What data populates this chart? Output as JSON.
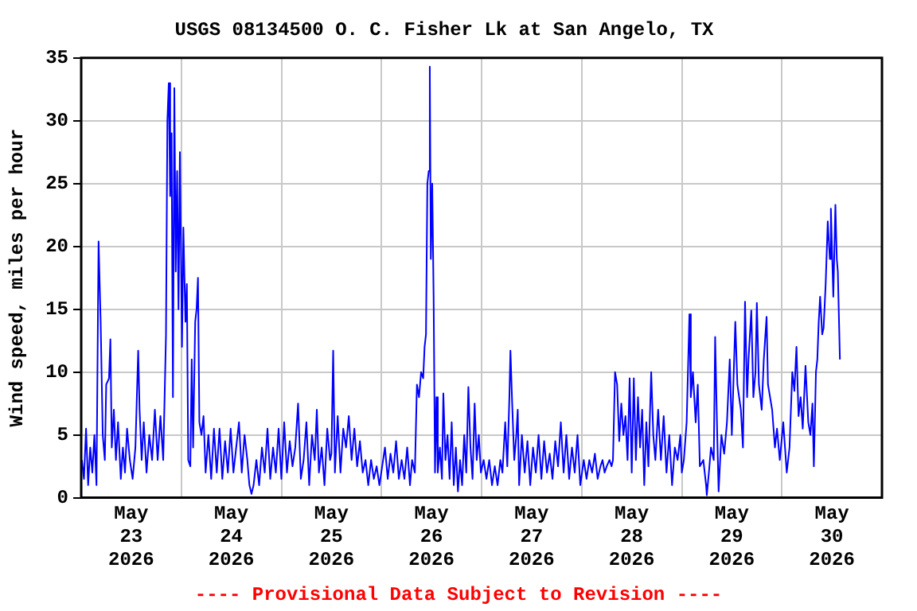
{
  "chart_data": {
    "type": "line",
    "title": "USGS 08134500 O. C. Fisher Lk at San Angelo, TX",
    "ylabel": "Wind speed, miles per hour",
    "annotations": [
      "---- Provisional Data Subject to Revision ----"
    ],
    "xlim": [
      "2026-05-23T00:00",
      "2026-05-31T00:00"
    ],
    "xticks": [
      {
        "value": "2026-05-23T00:00",
        "label": null
      },
      {
        "value": "2026-05-23T12:00",
        "label": "May 23 2026"
      },
      {
        "value": "2026-05-24T00:00",
        "label": null
      },
      {
        "value": "2026-05-24T12:00",
        "label": "May 24 2026"
      },
      {
        "value": "2026-05-25T00:00",
        "label": null
      },
      {
        "value": "2026-05-25T12:00",
        "label": "May 25 2026"
      },
      {
        "value": "2026-05-26T00:00",
        "label": null
      },
      {
        "value": "2026-05-26T12:00",
        "label": "May 26 2026"
      },
      {
        "value": "2026-05-27T00:00",
        "label": null
      },
      {
        "value": "2026-05-27T12:00",
        "label": "May 27 2026"
      },
      {
        "value": "2026-05-28T00:00",
        "label": null
      },
      {
        "value": "2026-05-28T12:00",
        "label": "May 28 2026"
      },
      {
        "value": "2026-05-29T00:00",
        "label": null
      },
      {
        "value": "2026-05-29T12:00",
        "label": "May 29 2026"
      },
      {
        "value": "2026-05-30T00:00",
        "label": null
      },
      {
        "value": "2026-05-30T12:00",
        "label": "May 30 2026"
      },
      {
        "value": "2026-05-31T00:00",
        "label": null
      }
    ],
    "ylim": [
      0,
      35
    ],
    "yticks": [
      0,
      5,
      10,
      15,
      20,
      25,
      30,
      35
    ],
    "grid": true,
    "legend": false,
    "marker": "none",
    "line_style": "solid",
    "series": [
      {
        "color": "#0000ff",
        "x": [
          "2026-05-23T00:10",
          "2026-05-23T00:40",
          "2026-05-23T01:10",
          "2026-05-23T01:40",
          "2026-05-23T02:10",
          "2026-05-23T02:40",
          "2026-05-23T03:10",
          "2026-05-23T03:40",
          "2026-05-23T04:10",
          "2026-05-23T04:40",
          "2026-05-23T05:10",
          "2026-05-23T05:40",
          "2026-05-23T06:00",
          "2026-05-23T06:40",
          "2026-05-23T07:00",
          "2026-05-23T07:20",
          "2026-05-23T07:50",
          "2026-05-23T08:20",
          "2026-05-23T08:50",
          "2026-05-23T09:30",
          "2026-05-23T10:00",
          "2026-05-23T10:30",
          "2026-05-23T11:00",
          "2026-05-23T11:40",
          "2026-05-23T12:20",
          "2026-05-23T13:00",
          "2026-05-23T13:40",
          "2026-05-23T14:00",
          "2026-05-23T14:30",
          "2026-05-23T15:00",
          "2026-05-23T15:40",
          "2026-05-23T16:20",
          "2026-05-23T17:00",
          "2026-05-23T17:40",
          "2026-05-23T18:20",
          "2026-05-23T19:00",
          "2026-05-23T19:40",
          "2026-05-23T20:20",
          "2026-05-23T20:40",
          "2026-05-23T21:00",
          "2026-05-23T21:20",
          "2026-05-23T21:40",
          "2026-05-23T22:00",
          "2026-05-23T22:20",
          "2026-05-23T22:40",
          "2026-05-23T23:00",
          "2026-05-23T23:20",
          "2026-05-23T23:40",
          "2026-05-24T00:10",
          "2026-05-24T00:30",
          "2026-05-24T01:00",
          "2026-05-24T01:20",
          "2026-05-24T01:40",
          "2026-05-24T02:10",
          "2026-05-24T02:30",
          "2026-05-24T02:50",
          "2026-05-24T03:20",
          "2026-05-24T03:40",
          "2026-05-24T04:00",
          "2026-05-24T04:20",
          "2026-05-24T04:50",
          "2026-05-24T05:20",
          "2026-05-24T05:50",
          "2026-05-24T06:30",
          "2026-05-24T07:10",
          "2026-05-24T07:50",
          "2026-05-24T08:30",
          "2026-05-24T09:10",
          "2026-05-24T09:50",
          "2026-05-24T10:30",
          "2026-05-24T11:10",
          "2026-05-24T11:50",
          "2026-05-24T12:30",
          "2026-05-24T13:10",
          "2026-05-24T13:50",
          "2026-05-24T14:30",
          "2026-05-24T15:10",
          "2026-05-24T15:50",
          "2026-05-24T16:20",
          "2026-05-24T16:50",
          "2026-05-24T17:20",
          "2026-05-24T18:00",
          "2026-05-24T18:40",
          "2026-05-24T19:20",
          "2026-05-24T20:00",
          "2026-05-24T20:40",
          "2026-05-24T21:20",
          "2026-05-24T22:00",
          "2026-05-24T22:40",
          "2026-05-24T23:20",
          "2026-05-25T00:00",
          "2026-05-25T00:40",
          "2026-05-25T01:20",
          "2026-05-25T02:00",
          "2026-05-25T02:40",
          "2026-05-25T03:20",
          "2026-05-25T04:00",
          "2026-05-25T04:40",
          "2026-05-25T05:20",
          "2026-05-25T06:00",
          "2026-05-25T06:40",
          "2026-05-25T07:20",
          "2026-05-25T08:00",
          "2026-05-25T08:30",
          "2026-05-25T09:00",
          "2026-05-25T09:40",
          "2026-05-25T10:20",
          "2026-05-25T11:00",
          "2026-05-25T11:40",
          "2026-05-25T12:00",
          "2026-05-25T12:25",
          "2026-05-25T12:50",
          "2026-05-25T13:30",
          "2026-05-25T14:10",
          "2026-05-25T14:50",
          "2026-05-25T15:30",
          "2026-05-25T16:10",
          "2026-05-25T16:50",
          "2026-05-25T17:30",
          "2026-05-25T18:10",
          "2026-05-25T18:50",
          "2026-05-25T19:30",
          "2026-05-25T20:10",
          "2026-05-25T20:50",
          "2026-05-25T21:30",
          "2026-05-25T22:10",
          "2026-05-25T22:50",
          "2026-05-25T23:30",
          "2026-05-26T00:10",
          "2026-05-26T00:50",
          "2026-05-26T01:30",
          "2026-05-26T02:10",
          "2026-05-26T02:50",
          "2026-05-26T03:30",
          "2026-05-26T04:10",
          "2026-05-26T04:50",
          "2026-05-26T05:30",
          "2026-05-26T06:10",
          "2026-05-26T06:50",
          "2026-05-26T07:20",
          "2026-05-26T08:00",
          "2026-05-26T08:30",
          "2026-05-26T09:00",
          "2026-05-26T09:30",
          "2026-05-26T10:00",
          "2026-05-26T10:20",
          "2026-05-26T10:40",
          "2026-05-26T11:00",
          "2026-05-26T11:20",
          "2026-05-26T11:35",
          "2026-05-26T11:50",
          "2026-05-26T12:10",
          "2026-05-26T12:30",
          "2026-05-26T12:50",
          "2026-05-26T13:10",
          "2026-05-26T13:30",
          "2026-05-26T14:00",
          "2026-05-26T14:30",
          "2026-05-26T14:50",
          "2026-05-26T15:20",
          "2026-05-26T15:50",
          "2026-05-26T16:20",
          "2026-05-26T16:50",
          "2026-05-26T17:20",
          "2026-05-26T17:50",
          "2026-05-26T18:20",
          "2026-05-26T18:50",
          "2026-05-26T19:20",
          "2026-05-26T19:50",
          "2026-05-26T20:20",
          "2026-05-26T20:50",
          "2026-05-26T21:20",
          "2026-05-26T21:50",
          "2026-05-26T22:20",
          "2026-05-26T22:50",
          "2026-05-26T23:20",
          "2026-05-26T23:50",
          "2026-05-27T00:30",
          "2026-05-27T01:10",
          "2026-05-27T01:50",
          "2026-05-27T02:30",
          "2026-05-27T03:10",
          "2026-05-27T03:50",
          "2026-05-27T04:30",
          "2026-05-27T05:00",
          "2026-05-27T05:40",
          "2026-05-27T06:10",
          "2026-05-27T06:40",
          "2026-05-27T06:55",
          "2026-05-27T07:20",
          "2026-05-27T07:50",
          "2026-05-27T08:20",
          "2026-05-27T08:40",
          "2026-05-27T09:00",
          "2026-05-27T09:40",
          "2026-05-27T10:20",
          "2026-05-27T11:00",
          "2026-05-27T11:40",
          "2026-05-27T12:20",
          "2026-05-27T13:00",
          "2026-05-27T13:40",
          "2026-05-27T14:20",
          "2026-05-27T15:00",
          "2026-05-27T15:40",
          "2026-05-27T16:20",
          "2026-05-27T17:00",
          "2026-05-27T17:40",
          "2026-05-27T18:20",
          "2026-05-27T19:00",
          "2026-05-27T19:40",
          "2026-05-27T20:20",
          "2026-05-27T21:00",
          "2026-05-27T21:40",
          "2026-05-27T22:20",
          "2026-05-27T23:00",
          "2026-05-27T23:40",
          "2026-05-28T00:30",
          "2026-05-28T01:10",
          "2026-05-28T01:50",
          "2026-05-28T02:30",
          "2026-05-28T03:10",
          "2026-05-28T03:50",
          "2026-05-28T04:30",
          "2026-05-28T05:00",
          "2026-05-28T05:30",
          "2026-05-28T06:00",
          "2026-05-28T06:40",
          "2026-05-28T07:10",
          "2026-05-28T07:30",
          "2026-05-28T08:00",
          "2026-05-28T08:30",
          "2026-05-28T09:00",
          "2026-05-28T09:30",
          "2026-05-28T10:00",
          "2026-05-28T10:30",
          "2026-05-28T11:00",
          "2026-05-28T11:30",
          "2026-05-28T12:00",
          "2026-05-28T12:30",
          "2026-05-28T13:00",
          "2026-05-28T13:30",
          "2026-05-28T14:00",
          "2026-05-28T14:30",
          "2026-05-28T15:00",
          "2026-05-28T15:30",
          "2026-05-28T16:00",
          "2026-05-28T16:40",
          "2026-05-28T17:10",
          "2026-05-28T17:40",
          "2026-05-28T18:20",
          "2026-05-28T19:00",
          "2026-05-28T19:40",
          "2026-05-28T20:20",
          "2026-05-28T21:00",
          "2026-05-28T21:40",
          "2026-05-28T22:20",
          "2026-05-28T23:00",
          "2026-05-28T23:40",
          "2026-05-29T00:00",
          "2026-05-29T00:30",
          "2026-05-29T01:10",
          "2026-05-29T01:50",
          "2026-05-29T02:10",
          "2026-05-29T02:40",
          "2026-05-29T03:20",
          "2026-05-29T03:50",
          "2026-05-29T04:20",
          "2026-05-29T05:10",
          "2026-05-29T05:50",
          "2026-05-29T06:00",
          "2026-05-29T06:30",
          "2026-05-29T07:00",
          "2026-05-29T07:40",
          "2026-05-29T08:00",
          "2026-05-29T08:30",
          "2026-05-29T08:50",
          "2026-05-29T09:30",
          "2026-05-29T10:10",
          "2026-05-29T10:50",
          "2026-05-29T11:30",
          "2026-05-29T12:00",
          "2026-05-29T12:50",
          "2026-05-29T13:20",
          "2026-05-29T14:10",
          "2026-05-29T14:40",
          "2026-05-29T15:10",
          "2026-05-29T15:40",
          "2026-05-29T16:00",
          "2026-05-29T16:40",
          "2026-05-29T17:10",
          "2026-05-29T17:40",
          "2026-05-29T18:00",
          "2026-05-29T18:30",
          "2026-05-29T19:10",
          "2026-05-29T19:40",
          "2026-05-29T20:20",
          "2026-05-29T20:40",
          "2026-05-29T21:40",
          "2026-05-29T22:20",
          "2026-05-29T22:50",
          "2026-05-29T23:30",
          "2026-05-30T00:20",
          "2026-05-30T01:10",
          "2026-05-30T01:50",
          "2026-05-30T02:30",
          "2026-05-30T03:00",
          "2026-05-30T03:30",
          "2026-05-30T04:00",
          "2026-05-30T04:30",
          "2026-05-30T05:00",
          "2026-05-30T05:40",
          "2026-05-30T06:20",
          "2026-05-30T06:50",
          "2026-05-30T07:20",
          "2026-05-30T07:40",
          "2026-05-30T08:10",
          "2026-05-30T08:30",
          "2026-05-30T08:50",
          "2026-05-30T09:10",
          "2026-05-30T09:40",
          "2026-05-30T10:00",
          "2026-05-30T10:30",
          "2026-05-30T11:00",
          "2026-05-30T11:30",
          "2026-05-30T11:45",
          "2026-05-30T12:20",
          "2026-05-30T12:50",
          "2026-05-30T13:10",
          "2026-05-30T13:25",
          "2026-05-30T13:55"
        ],
        "values": [
          3,
          1.5,
          5.5,
          1,
          4,
          2,
          5,
          1,
          20.4,
          14,
          5,
          3,
          9,
          9.5,
          12.6,
          4,
          7,
          3,
          6,
          1.5,
          4,
          2,
          5.5,
          3,
          1.5,
          4,
          11.7,
          7,
          3,
          6,
          2,
          5,
          3,
          7,
          3,
          6.5,
          3,
          13,
          30,
          33,
          24,
          29,
          8,
          32.6,
          18,
          26,
          15,
          27.5,
          12,
          21.5,
          14,
          17,
          3,
          2.5,
          11,
          4,
          14,
          15,
          17.5,
          6,
          5,
          6.5,
          2,
          5,
          1.5,
          5.5,
          2,
          5.5,
          1.5,
          4.5,
          2,
          5.5,
          2,
          4,
          6,
          2,
          5,
          3,
          1,
          0.3,
          1,
          3,
          1,
          4,
          2,
          5.5,
          1.5,
          4,
          2,
          5.5,
          1.5,
          6,
          2,
          4.5,
          2.5,
          4,
          7.5,
          1.5,
          3,
          6,
          1,
          5,
          3,
          7,
          2,
          4,
          1,
          5.5,
          3,
          3.5,
          11.7,
          2,
          6.5,
          2,
          5.5,
          4,
          6.5,
          3,
          5.5,
          2.5,
          4.5,
          2,
          3,
          1,
          3,
          1.5,
          2.5,
          1,
          2.5,
          4,
          1.5,
          3.5,
          2,
          4.5,
          1.5,
          3,
          1.5,
          4,
          1,
          3,
          2,
          9,
          8,
          10,
          9.5,
          12,
          13,
          25,
          26,
          34.3,
          19,
          25,
          16,
          2,
          8,
          2,
          4,
          1.5,
          8.3,
          3,
          5,
          1.5,
          6,
          1,
          4,
          0.5,
          3,
          1,
          5,
          2,
          8.8,
          4,
          1.5,
          7.5,
          3,
          5,
          2,
          3,
          1.5,
          3,
          1,
          2.5,
          1,
          3,
          2,
          6,
          2.5,
          8,
          11.7,
          7.5,
          3,
          5,
          7,
          1,
          5,
          2,
          4.5,
          1,
          4,
          2,
          5,
          1.5,
          4.5,
          2,
          3.5,
          1.5,
          4.5,
          2.5,
          6,
          2,
          5,
          1.5,
          4,
          2,
          5,
          1,
          3,
          1.5,
          3,
          2,
          3.5,
          1.5,
          2.5,
          3,
          2,
          2.5,
          3,
          2.5,
          3,
          10,
          9,
          4.5,
          7.5,
          5,
          6.5,
          3,
          9.5,
          2,
          9.5,
          3,
          8,
          4,
          7,
          1,
          6,
          2.5,
          10,
          5,
          3,
          7,
          3,
          6.5,
          2,
          5,
          1,
          4,
          3,
          5,
          2,
          3,
          6,
          14.6,
          8,
          10,
          6,
          9,
          2.5,
          3,
          1,
          0.2,
          2,
          4,
          3,
          12.8,
          5,
          0.5,
          5,
          3.5,
          6,
          11,
          5,
          14,
          9,
          7,
          4,
          15.6,
          8,
          11,
          14.9,
          8,
          10,
          15.5,
          9,
          7,
          11,
          14.4,
          9,
          7,
          4,
          5.5,
          3,
          6,
          2,
          4,
          10,
          8.5,
          12,
          6.5,
          8,
          5.5,
          10.5,
          6,
          5,
          7.5,
          2.5,
          10,
          11,
          14,
          16,
          13,
          13.5,
          17,
          22,
          19,
          23,
          16,
          23.3,
          19,
          18,
          11
        ]
      }
    ]
  }
}
